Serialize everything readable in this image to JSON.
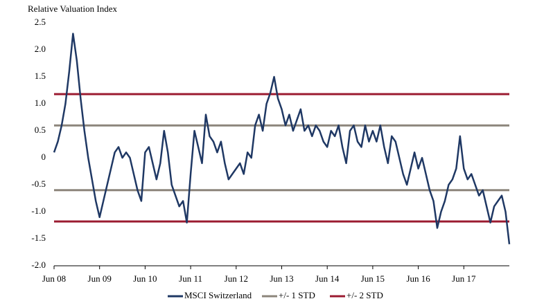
{
  "chart_data": {
    "type": "line",
    "title": "Relative Valuation Index",
    "categories": [
      "Jun 08",
      null,
      null,
      null,
      null,
      null,
      null,
      null,
      null,
      null,
      null,
      null,
      "Jun 09",
      null,
      null,
      null,
      null,
      null,
      null,
      null,
      null,
      null,
      null,
      null,
      "Jun 10",
      null,
      null,
      null,
      null,
      null,
      null,
      null,
      null,
      null,
      null,
      null,
      "Jun 11",
      null,
      null,
      null,
      null,
      null,
      null,
      null,
      null,
      null,
      null,
      null,
      "Jun 12",
      null,
      null,
      null,
      null,
      null,
      null,
      null,
      null,
      null,
      null,
      null,
      "Jun 13",
      null,
      null,
      null,
      null,
      null,
      null,
      null,
      null,
      null,
      null,
      null,
      "Jun 14",
      null,
      null,
      null,
      null,
      null,
      null,
      null,
      null,
      null,
      null,
      null,
      "Jun 15",
      null,
      null,
      null,
      null,
      null,
      null,
      null,
      null,
      null,
      null,
      null,
      "Jun 16",
      null,
      null,
      null,
      null,
      null,
      null,
      null,
      null,
      null,
      null,
      null,
      "Jun 17",
      null,
      null,
      null,
      null,
      null,
      null,
      null,
      null,
      null,
      null,
      null,
      null
    ],
    "series": [
      {
        "name": "MSCI Switzerland",
        "color": "#1f3864",
        "values": [
          0.1,
          0.3,
          0.6,
          1.0,
          1.6,
          2.3,
          1.8,
          1.1,
          0.5,
          0.0,
          -0.4,
          -0.8,
          -1.1,
          -0.8,
          -0.5,
          -0.2,
          0.1,
          0.2,
          0.0,
          0.1,
          0.0,
          -0.3,
          -0.6,
          -0.8,
          0.1,
          0.2,
          -0.1,
          -0.4,
          -0.1,
          0.5,
          0.1,
          -0.5,
          -0.7,
          -0.9,
          -0.8,
          -1.2,
          -0.3,
          0.5,
          0.2,
          -0.1,
          0.8,
          0.4,
          0.3,
          0.1,
          0.3,
          -0.1,
          -0.4,
          -0.3,
          -0.2,
          -0.1,
          -0.3,
          0.1,
          0.0,
          0.6,
          0.8,
          0.5,
          1.0,
          1.2,
          1.5,
          1.1,
          0.9,
          0.6,
          0.8,
          0.5,
          0.7,
          0.9,
          0.5,
          0.6,
          0.4,
          0.6,
          0.5,
          0.3,
          0.2,
          0.5,
          0.4,
          0.6,
          0.2,
          -0.1,
          0.5,
          0.6,
          0.3,
          0.2,
          0.6,
          0.3,
          0.5,
          0.3,
          0.6,
          0.2,
          -0.1,
          0.4,
          0.3,
          0.0,
          -0.3,
          -0.5,
          -0.2,
          0.1,
          -0.2,
          0.0,
          -0.3,
          -0.6,
          -0.8,
          -1.3,
          -1.0,
          -0.8,
          -0.5,
          -0.4,
          -0.2,
          0.4,
          -0.2,
          -0.4,
          -0.3,
          -0.5,
          -0.7,
          -0.6,
          -0.9,
          -1.2,
          -0.9,
          -0.8,
          -0.7,
          -1.0,
          -1.6
        ]
      }
    ],
    "reference_lines": [
      {
        "name": "+/- 1 STD",
        "color": "#8c857b",
        "values": [
          0.6,
          -0.6
        ]
      },
      {
        "name": "+/- 2 STD",
        "color": "#9b1b30",
        "values": [
          1.18,
          -1.18
        ]
      }
    ],
    "ylim": [
      -2.0,
      2.5
    ],
    "yticks": [
      {
        "value": -2.0,
        "label": "-2.0"
      },
      -1.5,
      {
        "value": -1.0,
        "label": "-1.0"
      },
      -0.5,
      0,
      0.5,
      {
        "value": 1.0,
        "label": "1.0"
      },
      1.5,
      {
        "value": 2.0,
        "label": "2.0"
      },
      2.5
    ],
    "legend": "bottom"
  }
}
